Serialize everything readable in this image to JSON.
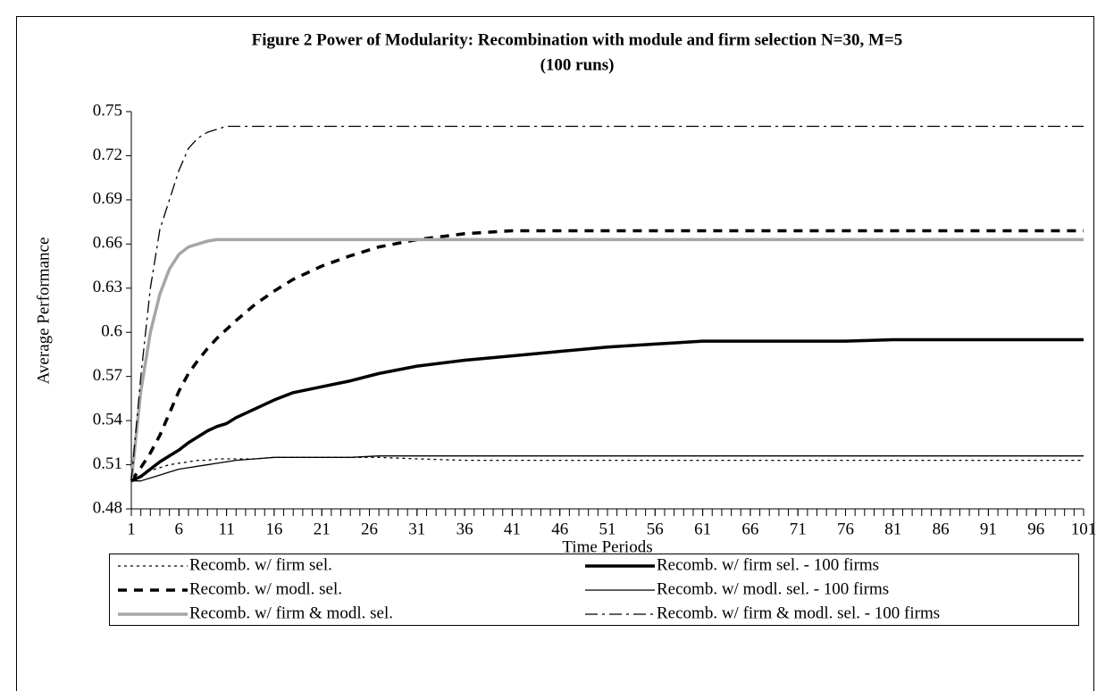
{
  "chart_data": {
    "type": "line",
    "title": "Figure 2  Power of Modularity: Recombination with module and firm selection N=30, M=5",
    "subtitle": "(100 runs)",
    "x_label": "Time Periods",
    "y_label": "Average Performance",
    "x": [
      1,
      2,
      3,
      4,
      5,
      6,
      7,
      8,
      9,
      10,
      11,
      12,
      14,
      16,
      18,
      21,
      24,
      27,
      31,
      36,
      41,
      46,
      51,
      56,
      61,
      66,
      71,
      76,
      81,
      86,
      91,
      96,
      101
    ],
    "xlim": [
      1,
      101
    ],
    "xticks": [
      1,
      6,
      11,
      16,
      21,
      26,
      31,
      36,
      41,
      46,
      51,
      56,
      61,
      66,
      71,
      76,
      81,
      86,
      91,
      96,
      101
    ],
    "ylim": [
      0.48,
      0.75
    ],
    "yticks": [
      0.48,
      0.51,
      0.54,
      0.57,
      0.6,
      0.63,
      0.66,
      0.69,
      0.72,
      0.75
    ],
    "grid": false,
    "legend": "bottom",
    "series": [
      {
        "name": "Recomb. w/ firm sel.",
        "color": "#000000",
        "linestyle": "dotted",
        "weight": "thin",
        "values": [
          0.499,
          0.503,
          0.506,
          0.508,
          0.51,
          0.511,
          0.512,
          0.513,
          0.513,
          0.514,
          0.514,
          0.514,
          0.514,
          0.515,
          0.515,
          0.515,
          0.515,
          0.515,
          0.514,
          0.513,
          0.513,
          0.513,
          0.513,
          0.513,
          0.513,
          0.513,
          0.513,
          0.513,
          0.513,
          0.513,
          0.513,
          0.513,
          0.513
        ]
      },
      {
        "name": "Recomb. w/ modl. sel.",
        "color": "#000000",
        "linestyle": "dashed",
        "weight": "thick",
        "values": [
          0.499,
          0.508,
          0.518,
          0.53,
          0.545,
          0.56,
          0.572,
          0.581,
          0.589,
          0.596,
          0.602,
          0.608,
          0.619,
          0.628,
          0.636,
          0.645,
          0.652,
          0.658,
          0.663,
          0.667,
          0.669,
          0.669,
          0.669,
          0.669,
          0.669,
          0.669,
          0.669,
          0.669,
          0.669,
          0.669,
          0.669,
          0.669,
          0.669
        ]
      },
      {
        "name": "Recomb. w/ firm & modl. sel.",
        "color": "#a6a6a6",
        "linestyle": "solid",
        "weight": "thick",
        "values": [
          0.499,
          0.56,
          0.6,
          0.626,
          0.643,
          0.653,
          0.658,
          0.66,
          0.662,
          0.663,
          0.663,
          0.663,
          0.663,
          0.663,
          0.663,
          0.663,
          0.663,
          0.663,
          0.663,
          0.663,
          0.663,
          0.663,
          0.663,
          0.663,
          0.663,
          0.663,
          0.663,
          0.663,
          0.663,
          0.663,
          0.663,
          0.663,
          0.663
        ]
      },
      {
        "name": "Recomb. w/ firm sel. - 100 firms",
        "color": "#000000",
        "linestyle": "solid",
        "weight": "thick",
        "values": [
          0.499,
          0.502,
          0.507,
          0.512,
          0.516,
          0.52,
          0.525,
          0.529,
          0.533,
          0.536,
          0.538,
          0.542,
          0.548,
          0.554,
          0.559,
          0.563,
          0.567,
          0.572,
          0.577,
          0.581,
          0.584,
          0.587,
          0.59,
          0.592,
          0.594,
          0.594,
          0.594,
          0.594,
          0.595,
          0.595,
          0.595,
          0.595,
          0.595
        ]
      },
      {
        "name": "Recomb. w/ modl. sel. - 100 firms",
        "color": "#000000",
        "linestyle": "solid",
        "weight": "thin",
        "values": [
          0.499,
          0.499,
          0.501,
          0.503,
          0.505,
          0.507,
          0.508,
          0.509,
          0.51,
          0.511,
          0.512,
          0.513,
          0.514,
          0.515,
          0.515,
          0.515,
          0.515,
          0.516,
          0.516,
          0.516,
          0.516,
          0.516,
          0.516,
          0.516,
          0.516,
          0.516,
          0.516,
          0.516,
          0.516,
          0.516,
          0.516,
          0.516,
          0.516
        ]
      },
      {
        "name": "Recomb. w/ firm & modl. sel. - 100 firms",
        "color": "#000000",
        "linestyle": "dashdot",
        "weight": "thin",
        "values": [
          0.499,
          0.57,
          0.63,
          0.67,
          0.69,
          0.71,
          0.725,
          0.732,
          0.736,
          0.738,
          0.74,
          0.74,
          0.74,
          0.74,
          0.74,
          0.74,
          0.74,
          0.74,
          0.74,
          0.74,
          0.74,
          0.74,
          0.74,
          0.74,
          0.74,
          0.74,
          0.74,
          0.74,
          0.74,
          0.74,
          0.74,
          0.74,
          0.74
        ]
      }
    ]
  }
}
